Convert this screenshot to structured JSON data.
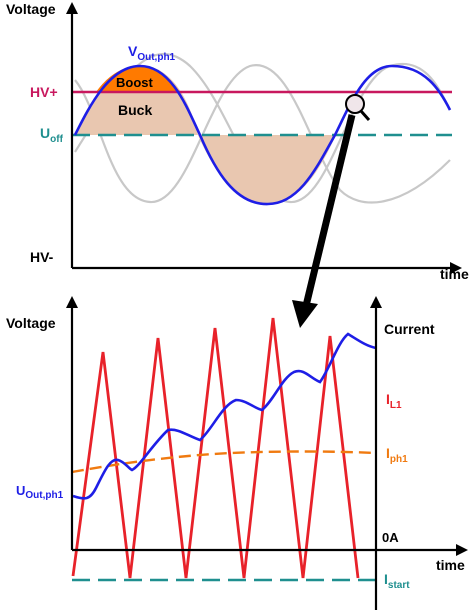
{
  "top_panel": {
    "y_axis_label": "Voltage",
    "x_axis_label": "time",
    "hv_plus_label": "HV+",
    "hv_minus_label": "HV-",
    "u_off_main": "U",
    "u_off_sub": "off",
    "v_out_main": "V",
    "v_out_sub": "Out,ph1",
    "boost_label": "Boost",
    "buck_label": "Buck",
    "colors": {
      "hv_plus_line": "#c8185e",
      "u_off_line": "#1f8f8f",
      "v_out": "#1e1ee6",
      "other_phases": "#c8c8c8",
      "buck_fill": "#e9c7b0",
      "boost_fill": "#ff7a00"
    }
  },
  "bottom_panel": {
    "y_axis_label": "Voltage",
    "x_axis_label": "time",
    "current_axis_label": "Current",
    "il1_main": "I",
    "il1_sub": "L1",
    "iph1_main": "I",
    "iph1_sub": "ph1",
    "u_out_main": "U",
    "u_out_sub": "Out,ph1",
    "zero_amp_label": "0A",
    "istart_main": "I",
    "istart_sub": "start",
    "colors": {
      "il1": "#e8222a",
      "iph1": "#f07a10",
      "u_out": "#1e1ee6",
      "istart": "#1f8f8f"
    }
  },
  "connector": {
    "magnifier_icon": "magnifier-icon",
    "arrow_color": "#000000"
  }
}
